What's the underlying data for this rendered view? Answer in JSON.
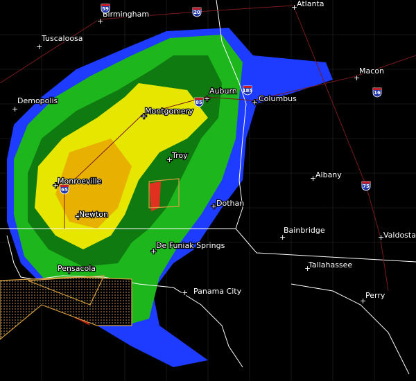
{
  "cities": [
    "Birmingham",
    "Atlanta",
    "Tuscaloosa",
    "Macon",
    "Auburn",
    "Demopolis",
    "Columbus",
    "Montgomery",
    "Troy",
    "Monroeville",
    "Albany",
    "Dothan",
    "Newton",
    "Bainbridge",
    "Valdosta",
    "De Funiak Springs",
    "Pensacola",
    "Tallahassee",
    "Panama City",
    "Perry"
  ],
  "interstates": [
    "59",
    "20",
    "85",
    "185",
    "16",
    "65",
    "75"
  ]
}
